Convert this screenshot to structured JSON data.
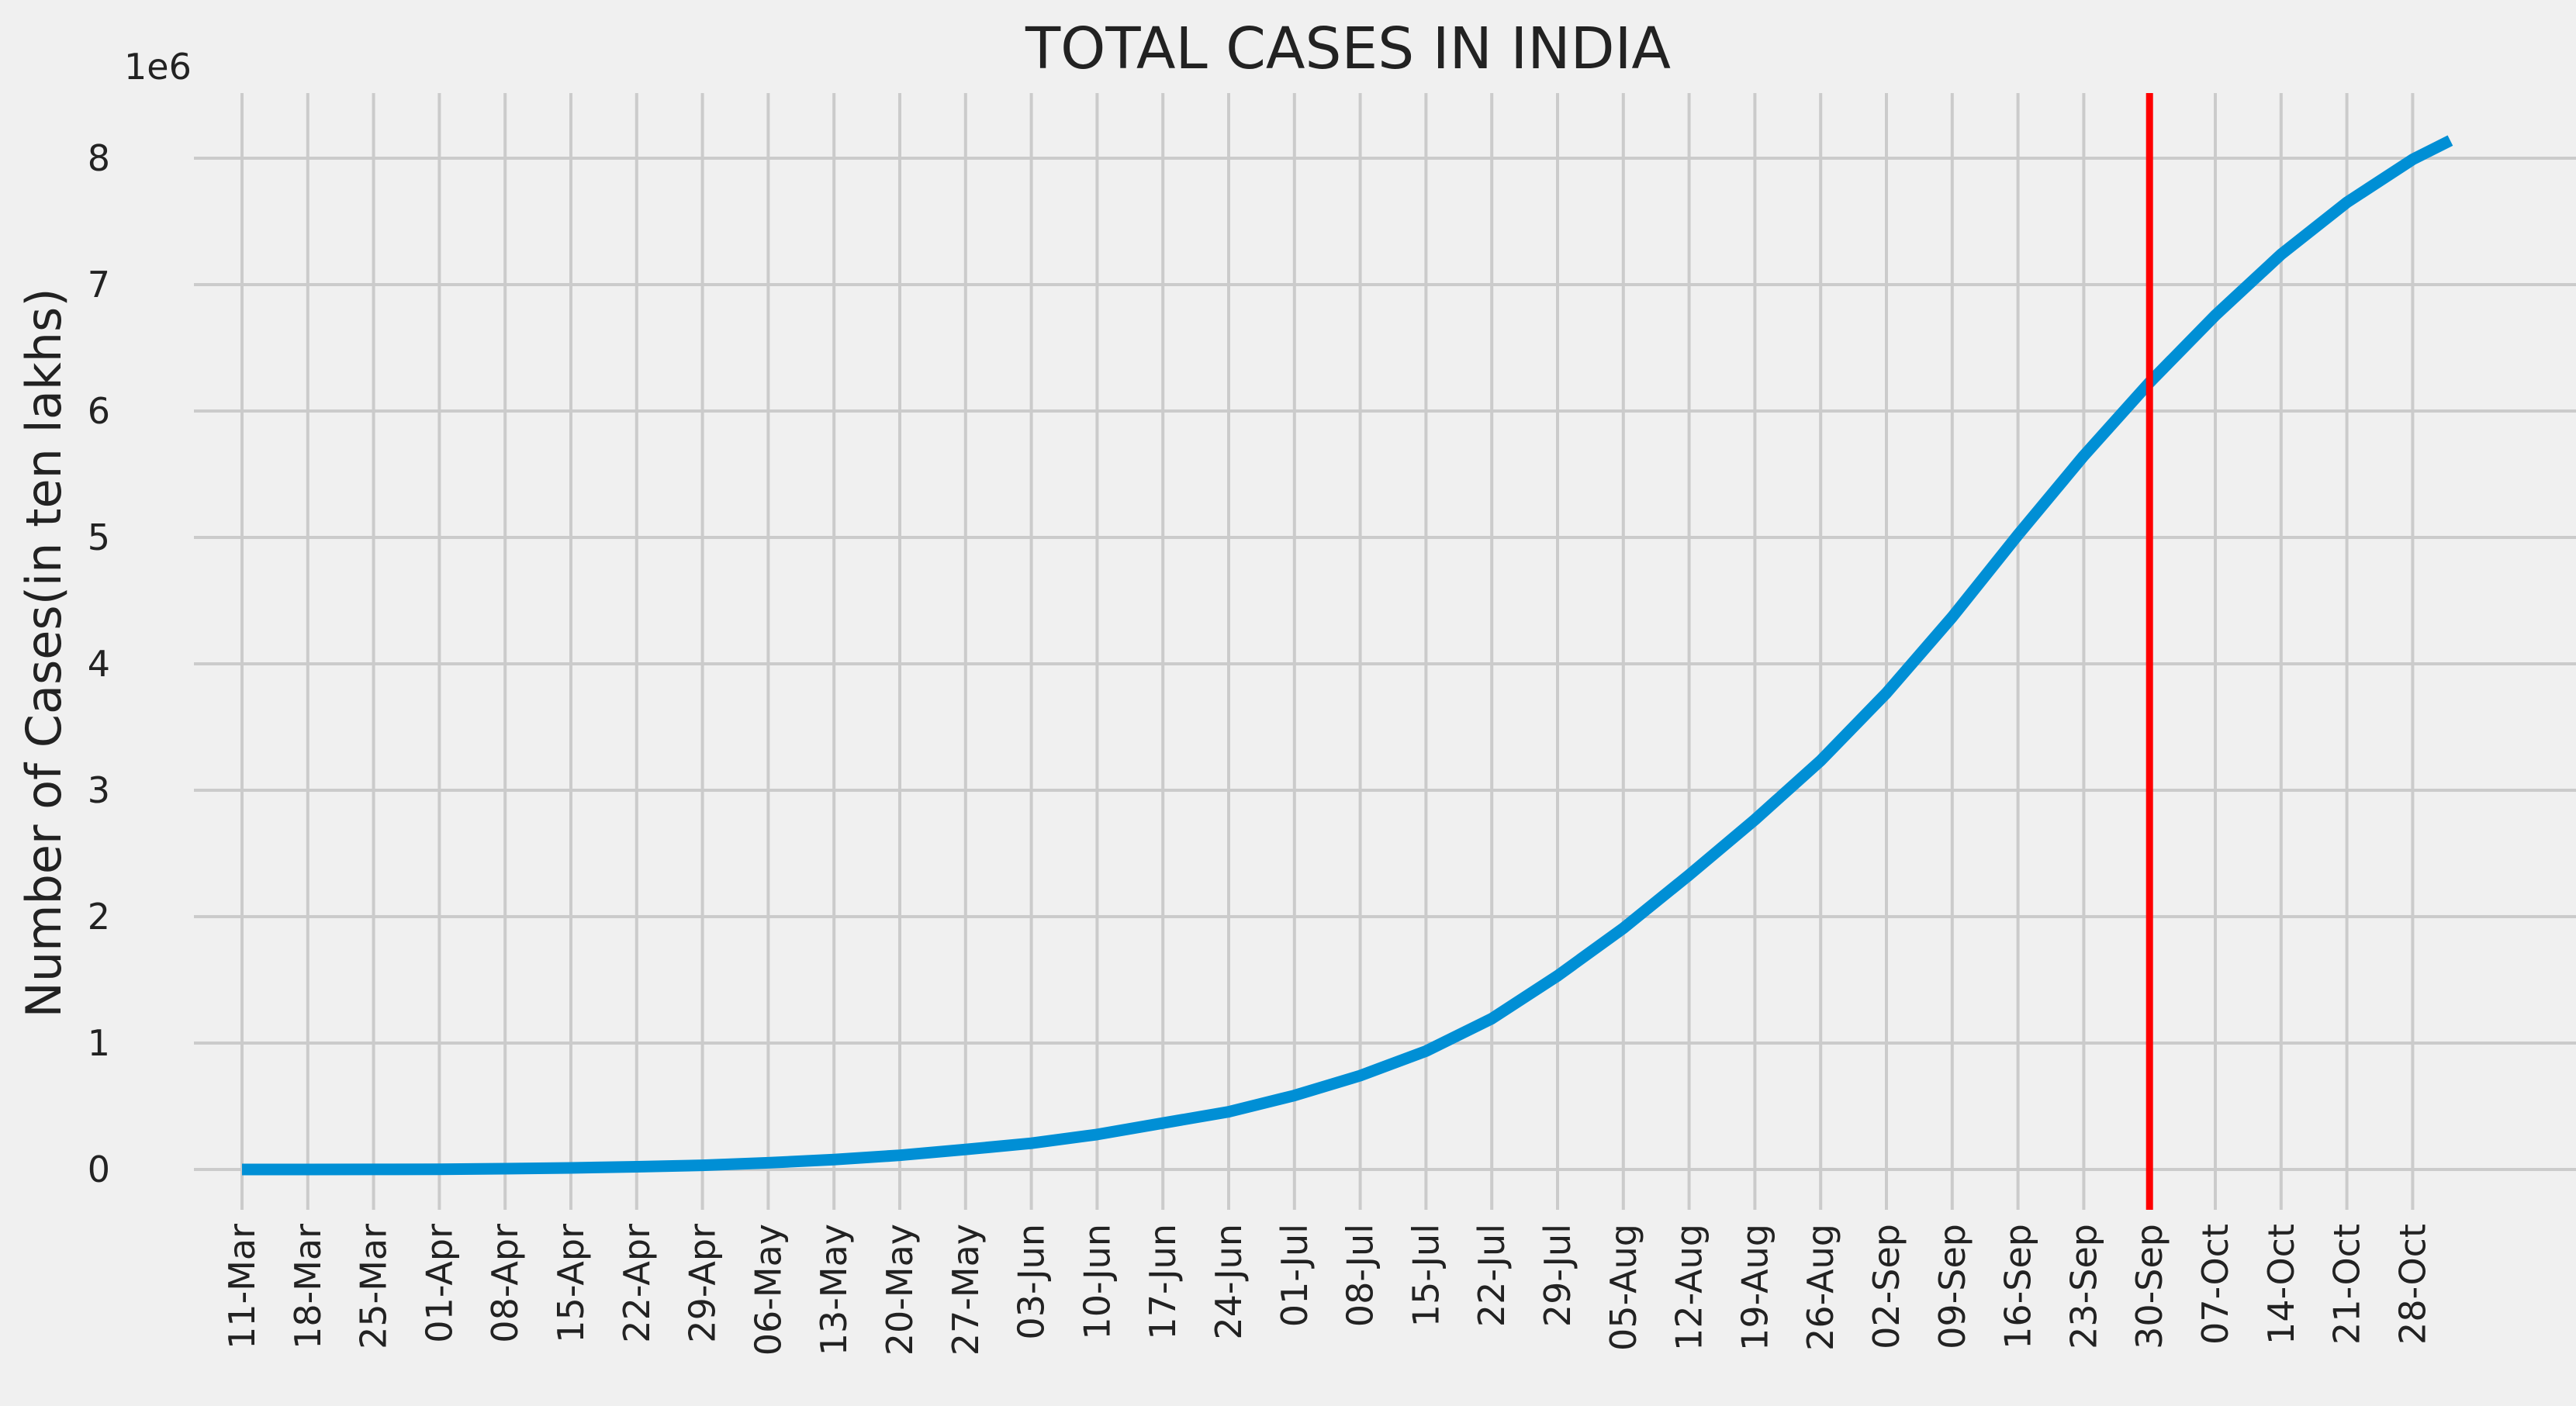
{
  "chart_data": {
    "type": "line",
    "title": "TOTAL CASES IN INDIA",
    "xlabel": "",
    "ylabel": "Number of Cases(in ten lakhs)",
    "y_offset_label": "1e6",
    "ylim": [
      -250000,
      8500000
    ],
    "yticks": [
      0,
      1000000,
      2000000,
      3000000,
      4000000,
      5000000,
      6000000,
      7000000,
      8000000
    ],
    "ytick_labels": [
      "0",
      "1",
      "2",
      "3",
      "4",
      "5",
      "6",
      "7",
      "8"
    ],
    "xticks": [
      "11-Mar",
      "18-Mar",
      "25-Mar",
      "01-Apr",
      "08-Apr",
      "15-Apr",
      "22-Apr",
      "29-Apr",
      "06-May",
      "13-May",
      "20-May",
      "27-May",
      "03-Jun",
      "10-Jun",
      "17-Jun",
      "24-Jun",
      "01-Jul",
      "08-Jul",
      "15-Jul",
      "22-Jul",
      "29-Jul",
      "05-Aug",
      "12-Aug",
      "19-Aug",
      "26-Aug",
      "02-Sep",
      "09-Sep",
      "16-Sep",
      "23-Sep",
      "30-Sep",
      "07-Oct",
      "14-Oct",
      "21-Oct",
      "28-Oct"
    ],
    "grid": true,
    "series": [
      {
        "color": "#008fd5",
        "x": [
          "11-Mar",
          "18-Mar",
          "25-Mar",
          "01-Apr",
          "08-Apr",
          "15-Apr",
          "22-Apr",
          "29-Apr",
          "06-May",
          "13-May",
          "20-May",
          "27-May",
          "03-Jun",
          "10-Jun",
          "17-Jun",
          "24-Jun",
          "01-Jul",
          "08-Jul",
          "15-Jul",
          "22-Jul",
          "29-Jul",
          "05-Aug",
          "12-Aug",
          "19-Aug",
          "26-Aug",
          "02-Sep",
          "09-Sep",
          "16-Sep",
          "23-Sep",
          "30-Sep",
          "07-Oct",
          "14-Oct",
          "21-Oct",
          "28-Oct",
          "01-Nov"
        ],
        "values": [
          60,
          150,
          650,
          1900,
          5900,
          12400,
          21400,
          33100,
          52900,
          78000,
          112000,
          158300,
          207600,
          276600,
          366900,
          456200,
          585500,
          742400,
          936200,
          1193000,
          1531700,
          1908300,
          2329600,
          2767000,
          3234500,
          3769500,
          4370100,
          5020400,
          5646000,
          6226000,
          6757000,
          7239000,
          7650000,
          7990000,
          8140000
        ]
      }
    ],
    "vline": {
      "x": "30-Sep",
      "color": "#ff0000"
    }
  }
}
